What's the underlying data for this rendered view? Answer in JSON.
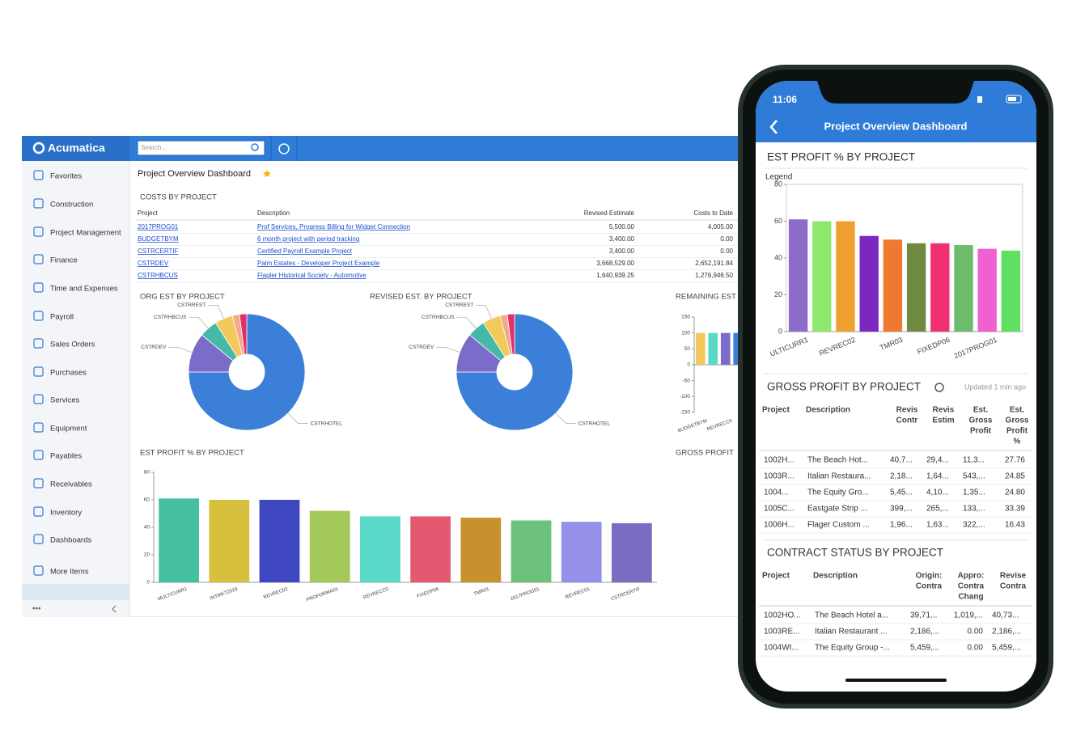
{
  "app": {
    "brand": "Acumatica",
    "search_placeholder": "Search...",
    "page_title": "Project Overview Dashboard",
    "menu": [
      "Favorites",
      "Construction",
      "Project Management",
      "Finance",
      "Time and Expenses",
      "Payroll",
      "Sales Orders",
      "Purchases",
      "Services",
      "Equipment",
      "Payables",
      "Receivables",
      "Inventory",
      "Dashboards",
      "More Items"
    ],
    "partial_section_title": "GROSS PROFIT"
  },
  "costs_table": {
    "title": "COSTS BY PROJECT",
    "headers": [
      "Project",
      "Description",
      "Revised Estimate",
      "Costs to Date"
    ],
    "rows": [
      [
        "2017PROG01",
        "Prof Services, Progress Billing for Widget Connection",
        "5,500.00",
        "4,005.00"
      ],
      [
        "BUDGETBYM",
        "6 month project with period tracking",
        "3,400.00",
        "0.00"
      ],
      [
        "CSTRCERTIF",
        "Certified Payroll Example Project",
        "3,400.00",
        "0.00"
      ],
      [
        "CSTRDEV",
        "Palm Estates - Developer Project Example",
        "3,668,529.00",
        "2,652,191.84"
      ],
      [
        "CSTRHBCUS",
        "Flagler Historical Society - Automotive",
        "1,640,939.25",
        "1,276,946.50"
      ]
    ]
  },
  "chart_data": [
    {
      "type": "pie",
      "title": "ORG EST BY PROJECT",
      "categories": [
        "CSTRHOTEL",
        "CSTRDEV",
        "CSTRHBCUS",
        "CSTRREST",
        null,
        null
      ],
      "values": [
        75,
        11,
        5,
        5,
        2,
        2
      ],
      "colors": [
        "#3b7fd9",
        "#7a6cc8",
        "#45b8a8",
        "#f2c95a",
        "#f3a98a",
        "#e0306a"
      ]
    },
    {
      "type": "pie",
      "title": "REVISED EST. BY PROJECT",
      "categories": [
        "CSTRHOTEL",
        "CSTRDEV",
        "CSTRHBCUS",
        "CSTRREST",
        null,
        null
      ],
      "values": [
        75,
        11,
        5,
        5,
        2,
        2
      ],
      "colors": [
        "#3b7fd9",
        "#7a6cc8",
        "#45b8a8",
        "#f2c95a",
        "#f3a98a",
        "#e0306a"
      ]
    },
    {
      "type": "bar",
      "title": "REMAINING EST",
      "categories": [
        "BUDGETBYM",
        null,
        "REVRECC0",
        null
      ],
      "values": [
        100,
        100,
        100,
        100
      ],
      "colors": [
        "#f2c95a",
        "#5ad8c8",
        "#7a6cc8",
        "#3b7fd9"
      ],
      "ylim": [
        -150,
        150
      ],
      "yticks": [
        -150,
        -100,
        -50,
        0,
        50,
        100,
        150
      ]
    },
    {
      "type": "bar",
      "title": "EST PROFIT % BY PROJECT",
      "categories": [
        "MULTICURR1",
        "INTMKT2018",
        "REVREC02",
        "PROFORMA01",
        "REVRECC0",
        "FIXEDP06",
        "TMR01",
        "2017PROG01",
        "REVREC01",
        "CSTRCERTIF"
      ],
      "values": [
        61,
        60,
        60,
        52,
        48,
        48,
        47,
        45,
        44,
        43
      ],
      "colors": [
        "#45c0a0",
        "#d6c03e",
        "#3f48c0",
        "#a5c85a",
        "#5ad8c8",
        "#e35a70",
        "#c9902e",
        "#6cc27a",
        "#9590e8",
        "#7a6cc0"
      ],
      "ylim": [
        0,
        80
      ],
      "yticks": [
        0,
        20,
        40,
        60,
        80
      ]
    },
    {
      "type": "bar",
      "title": "EST PROFIT % BY PROJECT",
      "legend_label": "Legend",
      "categories": [
        "ULTICURR1",
        null,
        "REVREC02",
        null,
        "TMR03",
        null,
        "FIXEDP06",
        null,
        "2017PROG01",
        null
      ],
      "values": [
        61,
        60,
        60,
        52,
        50,
        48,
        48,
        47,
        45,
        44
      ],
      "colors": [
        "#8c6cc8",
        "#8ee86e",
        "#f0a030",
        "#7a28c0",
        "#f07830",
        "#6f8a40",
        "#f03070",
        "#6cbc6c",
        "#f060d0",
        "#60e060"
      ],
      "ylim": [
        0,
        80
      ],
      "yticks": [
        0,
        20,
        40,
        60,
        80
      ]
    }
  ],
  "phone": {
    "time": "11:06",
    "title": "Project Overview Dashboard",
    "gross_profit": {
      "title": "GROSS PROFIT BY PROJECT",
      "updated": "Updated 1 min ago",
      "headers": [
        [
          "Project"
        ],
        [
          "Description"
        ],
        [
          "Revis",
          "Contr"
        ],
        [
          "Revis",
          "Estim"
        ],
        [
          "Est.",
          "Gross",
          "Profit"
        ],
        [
          "Est.",
          "Gross",
          "Profit",
          "%"
        ]
      ],
      "rows": [
        [
          "1002H...",
          "The Beach Hot...",
          "40,7...",
          "29,4...",
          "11,3...",
          "27.76"
        ],
        [
          "1003R...",
          "Italian Restaura...",
          "2,18...",
          "1,64...",
          "543,...",
          "24.85"
        ],
        [
          "1004...",
          "The Equity Gro...",
          "5,45...",
          "4,10...",
          "1,35...",
          "24.80"
        ],
        [
          "1005C...",
          "Eastgate Strip ...",
          "399,...",
          "265,...",
          "133,...",
          "33.39"
        ],
        [
          "1006H...",
          "Flager Custom ...",
          "1,96...",
          "1,63...",
          "322,...",
          "16.43"
        ]
      ]
    },
    "contract_status": {
      "title": "CONTRACT STATUS BY PROJECT",
      "headers": [
        [
          "Project"
        ],
        [
          "Description"
        ],
        [
          "Origin:",
          "Contra"
        ],
        [
          "Appro:",
          "Contra",
          "Chang"
        ],
        [
          "Revise",
          "Contra"
        ]
      ],
      "rows": [
        [
          "1002HO...",
          "The Beach Hotel a...",
          "39,71...",
          "1,019,...",
          "40,73..."
        ],
        [
          "1003RE...",
          "Italian Restaurant ...",
          "2,186,...",
          "0.00",
          "2,186,..."
        ],
        [
          "1004WI...",
          "The Equity Group -...",
          "5,459,...",
          "0.00",
          "5,459,..."
        ]
      ]
    }
  }
}
